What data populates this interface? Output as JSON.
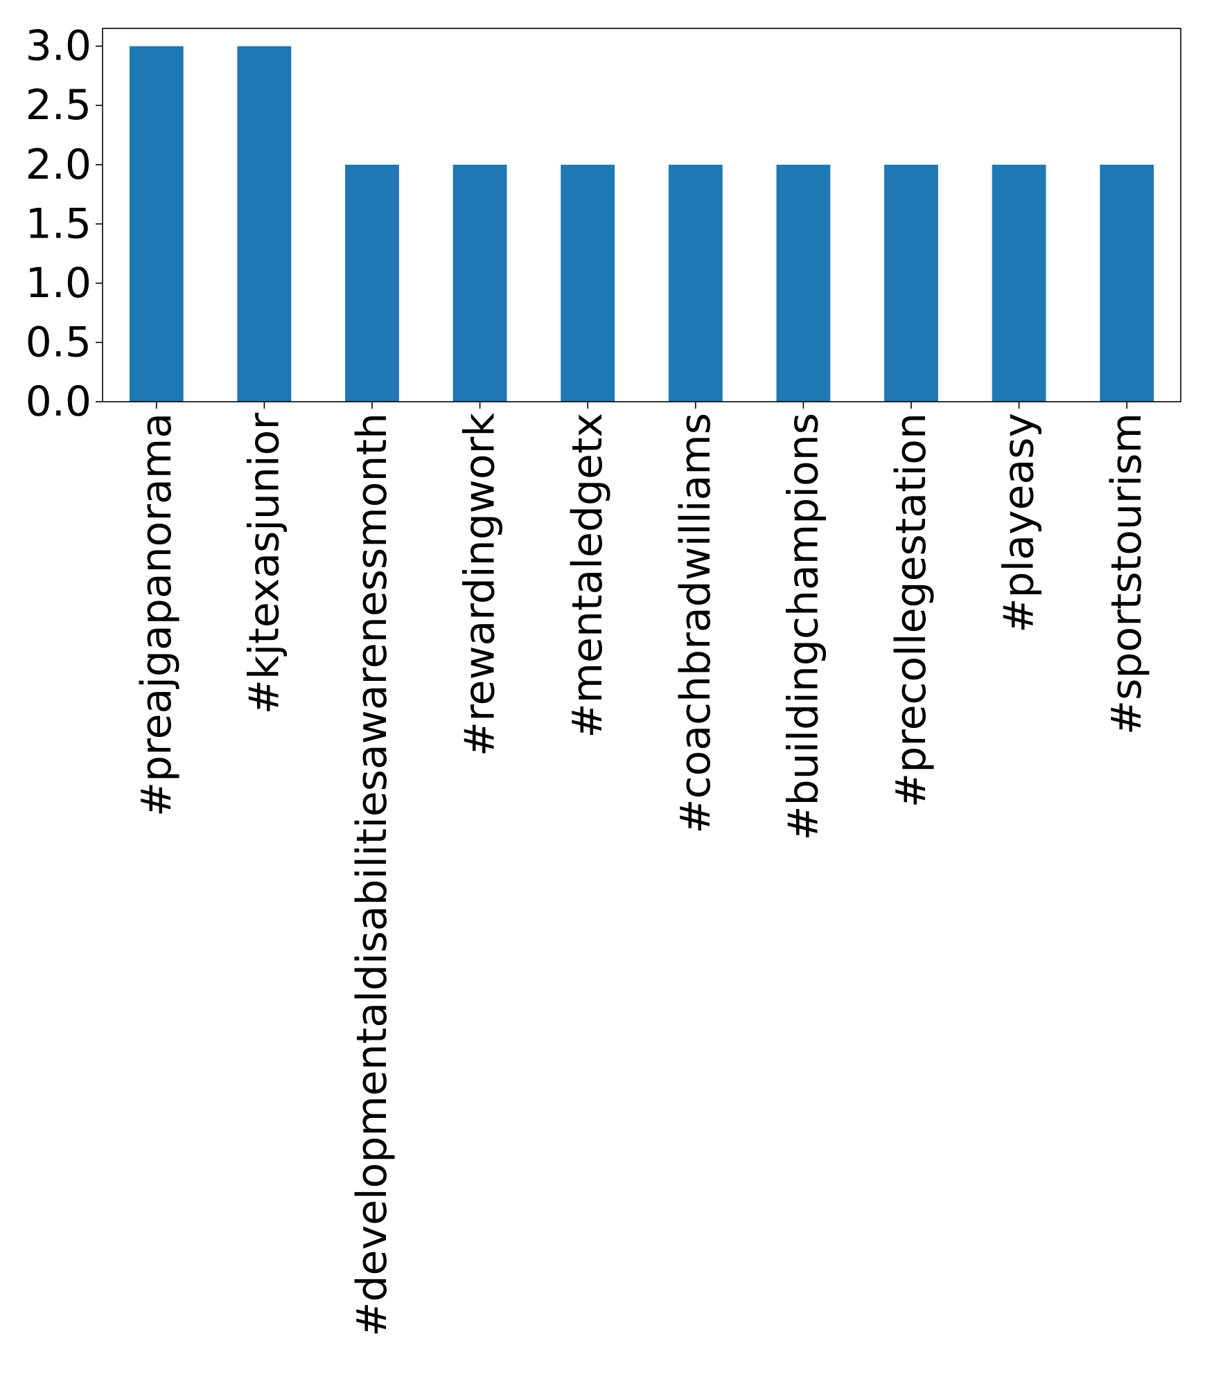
{
  "chart_data": {
    "type": "bar",
    "categories": [
      "#preajgapanorama",
      "#kjtexasjunior",
      "#developmentaldisabilitiesawarenessmonth",
      "#rewardingwork",
      "#mentaledgetx",
      "#coachbradwilliams",
      "#buildingchampions",
      "#precollegestation",
      "#playeasy",
      "#sportstourism"
    ],
    "values": [
      3,
      3,
      2,
      2,
      2,
      2,
      2,
      2,
      2,
      2
    ],
    "ylim": [
      0,
      3.15
    ],
    "yticks": [
      "0.0",
      "0.5",
      "1.0",
      "1.5",
      "2.0",
      "2.5",
      "3.0"
    ],
    "ytick_values": [
      0,
      0.5,
      1.0,
      1.5,
      2.0,
      2.5,
      3.0
    ],
    "xlabel_rotation": "vertical",
    "bar_color": "#1f77b4",
    "grid": false,
    "legend": "none"
  }
}
